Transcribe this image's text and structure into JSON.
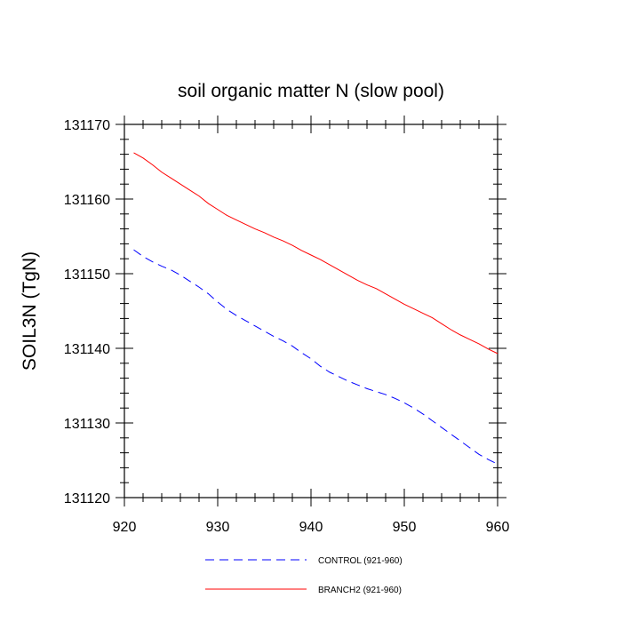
{
  "chart_data": {
    "type": "line",
    "title": "soil organic matter N (slow pool)",
    "xlabel": "",
    "ylabel": "SOIL3N  (TgN)",
    "xlim": [
      920,
      960
    ],
    "ylim": [
      131120,
      131170
    ],
    "xticks": [
      920,
      930,
      940,
      950,
      960
    ],
    "yticks": [
      131120,
      131130,
      131140,
      131150,
      131160,
      131170
    ],
    "legend_position": "bottom-center",
    "series": [
      {
        "name": "CONTROL (921-960)",
        "color": "#0000ff",
        "style": "dashed",
        "x": [
          921,
          922,
          923,
          924,
          925,
          926,
          927,
          928,
          929,
          930,
          931,
          932,
          933,
          934,
          935,
          936,
          937,
          938,
          939,
          940,
          941,
          942,
          943,
          944,
          945,
          946,
          947,
          948,
          949,
          950,
          951,
          952,
          953,
          954,
          955,
          956,
          957,
          958,
          959,
          960
        ],
        "y": [
          131153.2,
          131152.3,
          131151.6,
          131151.0,
          131150.5,
          131149.8,
          131149.0,
          131148.2,
          131147.3,
          131146.2,
          131145.2,
          131144.4,
          131143.7,
          131143.0,
          131142.3,
          131141.6,
          131141.0,
          131140.3,
          131139.4,
          131138.6,
          131137.6,
          131136.8,
          131136.2,
          131135.6,
          131135.1,
          131134.6,
          131134.2,
          131133.8,
          131133.3,
          131132.7,
          131132.0,
          131131.2,
          131130.3,
          131129.4,
          131128.5,
          131127.6,
          131126.7,
          131125.8,
          131125.1,
          131124.5
        ]
      },
      {
        "name": "BRANCH2 (921-960)",
        "color": "#ff0000",
        "style": "solid",
        "x": [
          921,
          922,
          923,
          924,
          925,
          926,
          927,
          928,
          929,
          930,
          931,
          932,
          933,
          934,
          935,
          936,
          937,
          938,
          939,
          940,
          941,
          942,
          943,
          944,
          945,
          946,
          947,
          948,
          949,
          950,
          951,
          952,
          953,
          954,
          955,
          956,
          957,
          958,
          959,
          960
        ],
        "y": [
          131166.2,
          131165.5,
          131164.6,
          131163.6,
          131162.8,
          131162.0,
          131161.2,
          131160.4,
          131159.4,
          131158.6,
          131157.8,
          131157.2,
          131156.6,
          131156.0,
          131155.5,
          131154.9,
          131154.4,
          131153.8,
          131153.1,
          131152.5,
          131151.9,
          131151.2,
          131150.5,
          131149.8,
          131149.1,
          131148.5,
          131148.0,
          131147.3,
          131146.6,
          131145.9,
          131145.3,
          131144.7,
          131144.1,
          131143.3,
          131142.5,
          131141.8,
          131141.2,
          131140.6,
          131139.9,
          131139.3
        ]
      }
    ]
  }
}
